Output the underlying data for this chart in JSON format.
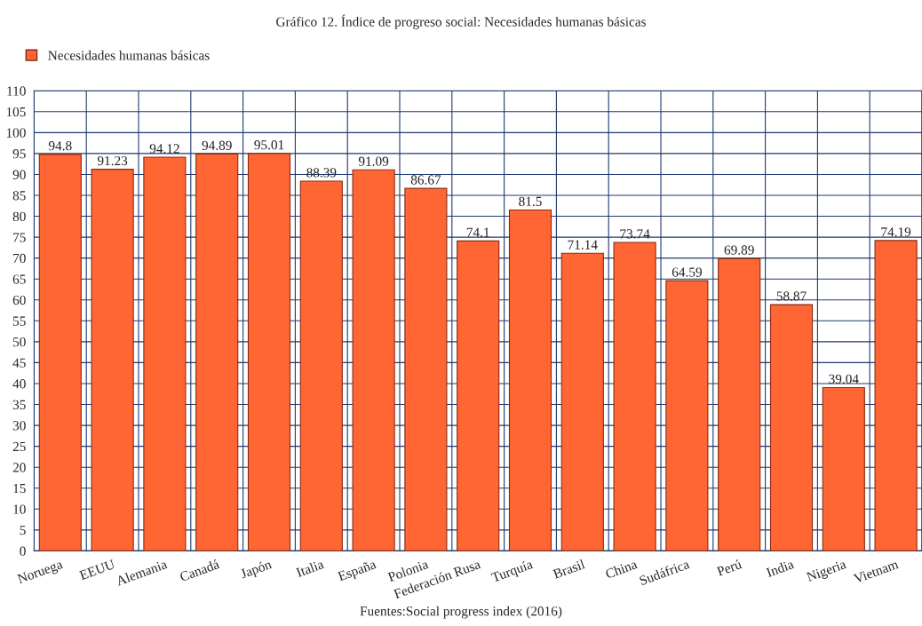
{
  "chart_data": {
    "type": "bar",
    "title": "Gráfico 12. Índice de progreso social: Necesidades humanas básicas",
    "categories": [
      "Noruega",
      "EEUU",
      "Alemania",
      "Canadá",
      "Japón",
      "Italia",
      "España",
      "Polonia",
      "Federación Rusa",
      "Turquía",
      "Brasil",
      "China",
      "Sudáfrica",
      "Perú",
      "India",
      "Nigeria",
      "Vietnam"
    ],
    "series": [
      {
        "name": "Necesidades humanas básicas",
        "color": "#ff6633",
        "values": [
          94.8,
          91.23,
          94.12,
          94.89,
          95.01,
          88.39,
          91.09,
          86.67,
          74.1,
          81.5,
          71.14,
          73.74,
          64.59,
          69.89,
          58.87,
          39.04,
          74.19
        ]
      }
    ],
    "ylim": [
      0,
      110
    ],
    "yticks": [
      0,
      5,
      10,
      15,
      20,
      25,
      30,
      35,
      40,
      45,
      50,
      55,
      60,
      65,
      70,
      75,
      80,
      85,
      90,
      95,
      100,
      105,
      110
    ],
    "grid": true,
    "legend": "top left",
    "data_labels": true,
    "annotations": [
      "Fuentes:Social progress index (2016)"
    ]
  }
}
